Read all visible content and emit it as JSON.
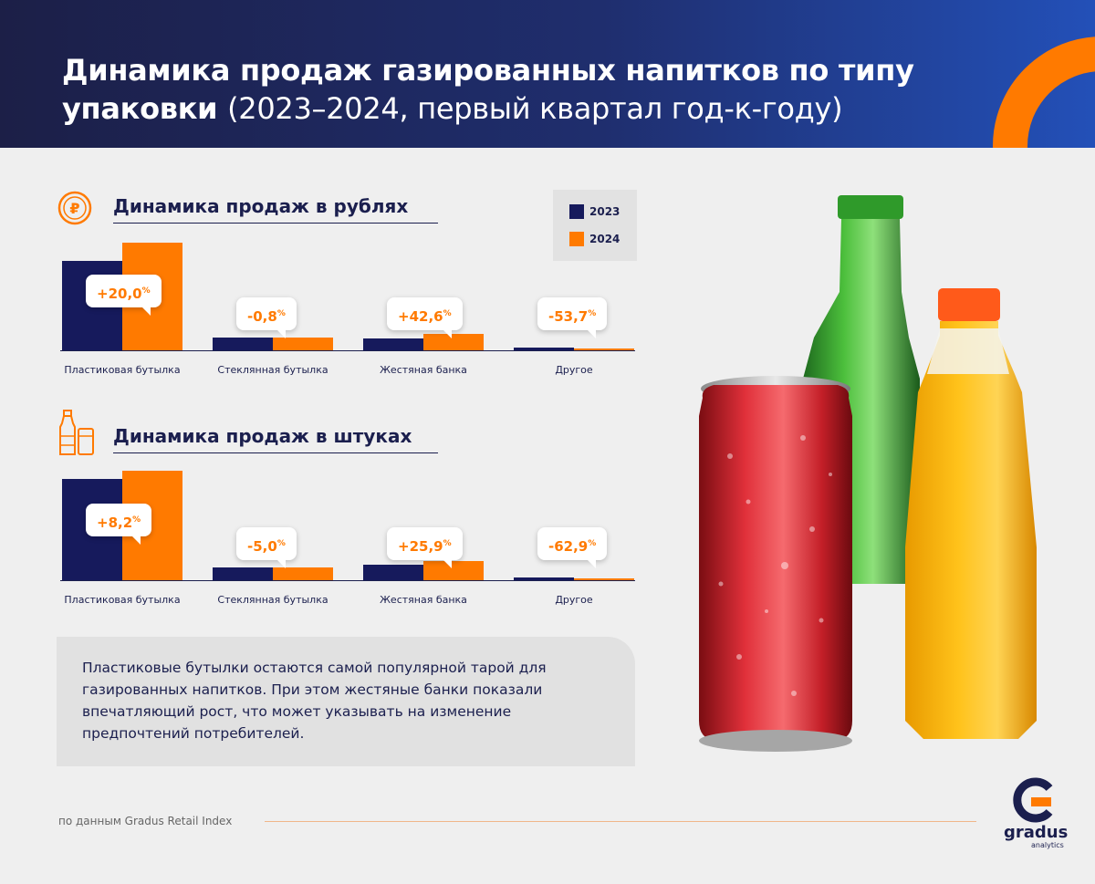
{
  "header": {
    "title_bold": "Динамика продаж газированных напитков по типу упаковки",
    "title_rest": "(2023–2024, первый квартал год-к-году)"
  },
  "legend": {
    "y2023": "2023",
    "y2024": "2024"
  },
  "colors": {
    "y2023": "#161a5c",
    "y2024": "#ff7a00",
    "accent": "#ff7a00"
  },
  "sections": [
    {
      "title": "Динамика продаж в рублях",
      "icon": "ruble-coin-icon"
    },
    {
      "title": "Динамика продаж в штуках",
      "icon": "bottle-can-icon"
    }
  ],
  "chart_data": [
    {
      "type": "bar",
      "title": "Динамика продаж в рублях",
      "categories": [
        "Пластиковая бутылка",
        "Стеклянная бутылка",
        "Жестяная банка",
        "Другое"
      ],
      "series": [
        {
          "name": "2023",
          "values": [
            100,
            14,
            13,
            3
          ]
        },
        {
          "name": "2024",
          "values": [
            120,
            13.9,
            18.5,
            1.4
          ]
        }
      ],
      "annotations": [
        "+20,0",
        "-0,8",
        "+42,6",
        "-53,7"
      ],
      "annotation_unit": "%"
    },
    {
      "type": "bar",
      "title": "Динамика продаж в штуках",
      "categories": [
        "Пластиковая бутылка",
        "Стеклянная бутылка",
        "Жестяная банка",
        "Другое"
      ],
      "series": [
        {
          "name": "2023",
          "values": [
            100,
            13,
            15,
            3
          ]
        },
        {
          "name": "2024",
          "values": [
            108.2,
            12.4,
            18.9,
            1.1
          ]
        }
      ],
      "annotations": [
        "+8,2",
        "-5,0",
        "+25,9",
        "-62,9"
      ],
      "annotation_unit": "%"
    }
  ],
  "note": "Пластиковые бутылки остаются самой популярной тарой для газированных напитков. При этом жестяные банки показали впечатляющий рост, что может указывать на изменение предпочтений потребителей.",
  "source": "по данным Gradus Retail Index",
  "logo": {
    "name": "gradus",
    "sub": "analytics"
  }
}
